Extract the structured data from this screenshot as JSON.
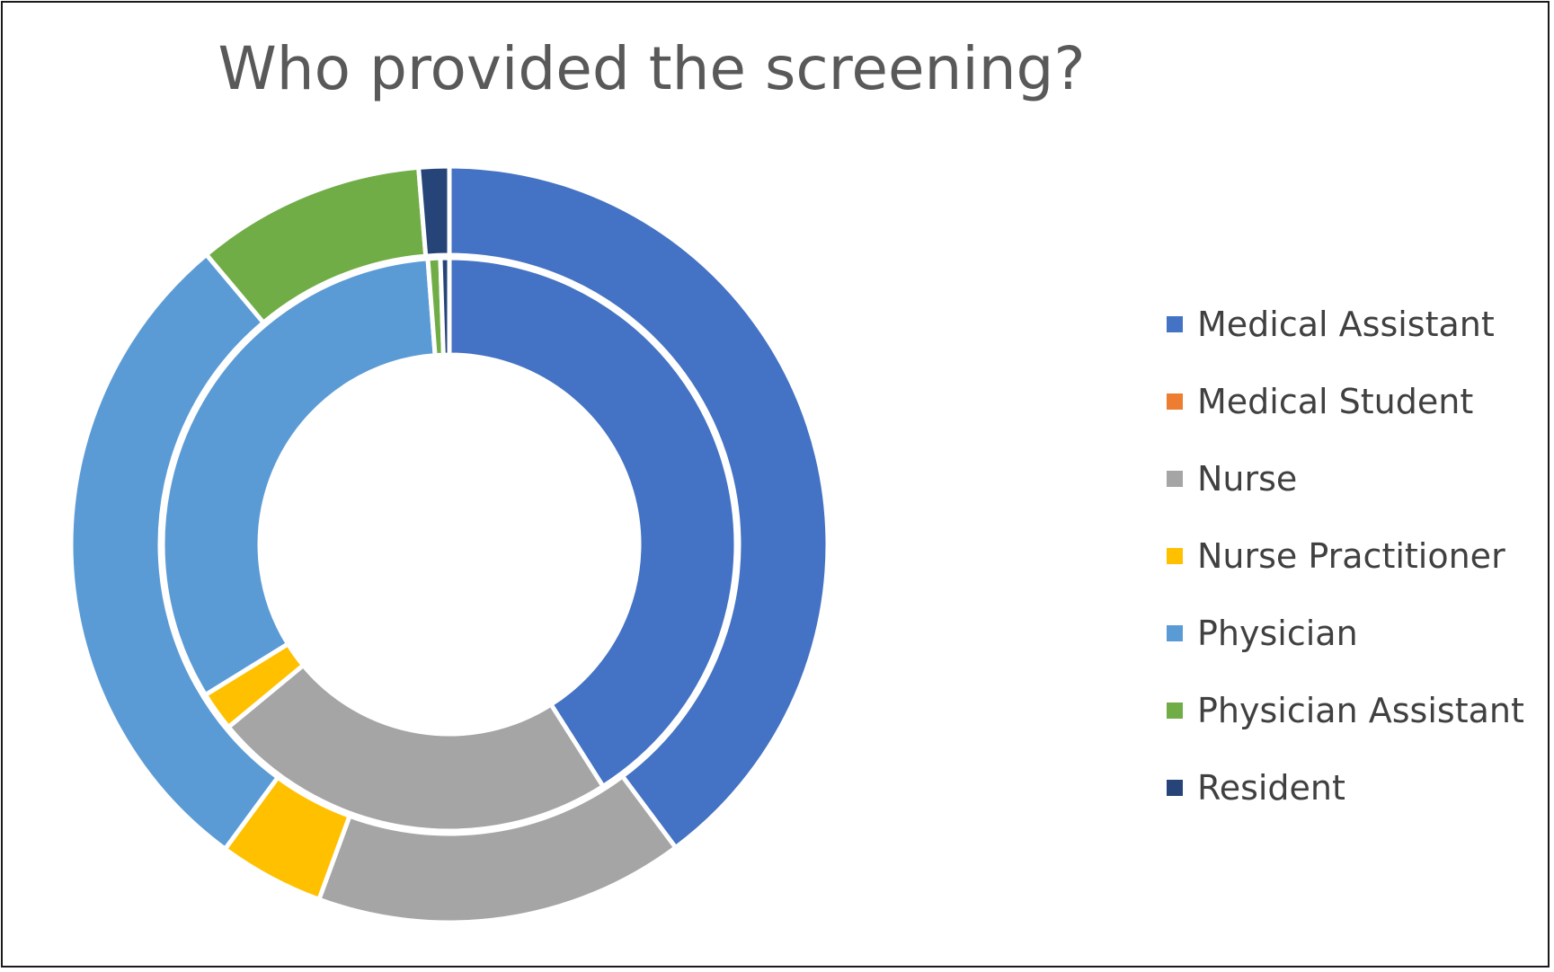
{
  "chart_data": {
    "type": "donut",
    "title": "Who provided the screening?",
    "categories": [
      "Medical Assistant",
      "Medical Student",
      "Nurse",
      "Nurse Practitioner",
      "Physician",
      "Physician Assistant",
      "Resident"
    ],
    "colors": [
      "#4472C4",
      "#ED7D31",
      "#A5A5A5",
      "#FFC000",
      "#5B9BD5",
      "#70AD47",
      "#264478"
    ],
    "series": [
      {
        "ring": "inner",
        "values": [
          41.0,
          0.0,
          23.0,
          2.2,
          32.6,
          0.7,
          0.5
        ]
      },
      {
        "ring": "outer",
        "values": [
          39.8,
          0.0,
          15.8,
          4.5,
          28.8,
          9.8,
          1.3
        ]
      }
    ],
    "legend_position": "right"
  }
}
